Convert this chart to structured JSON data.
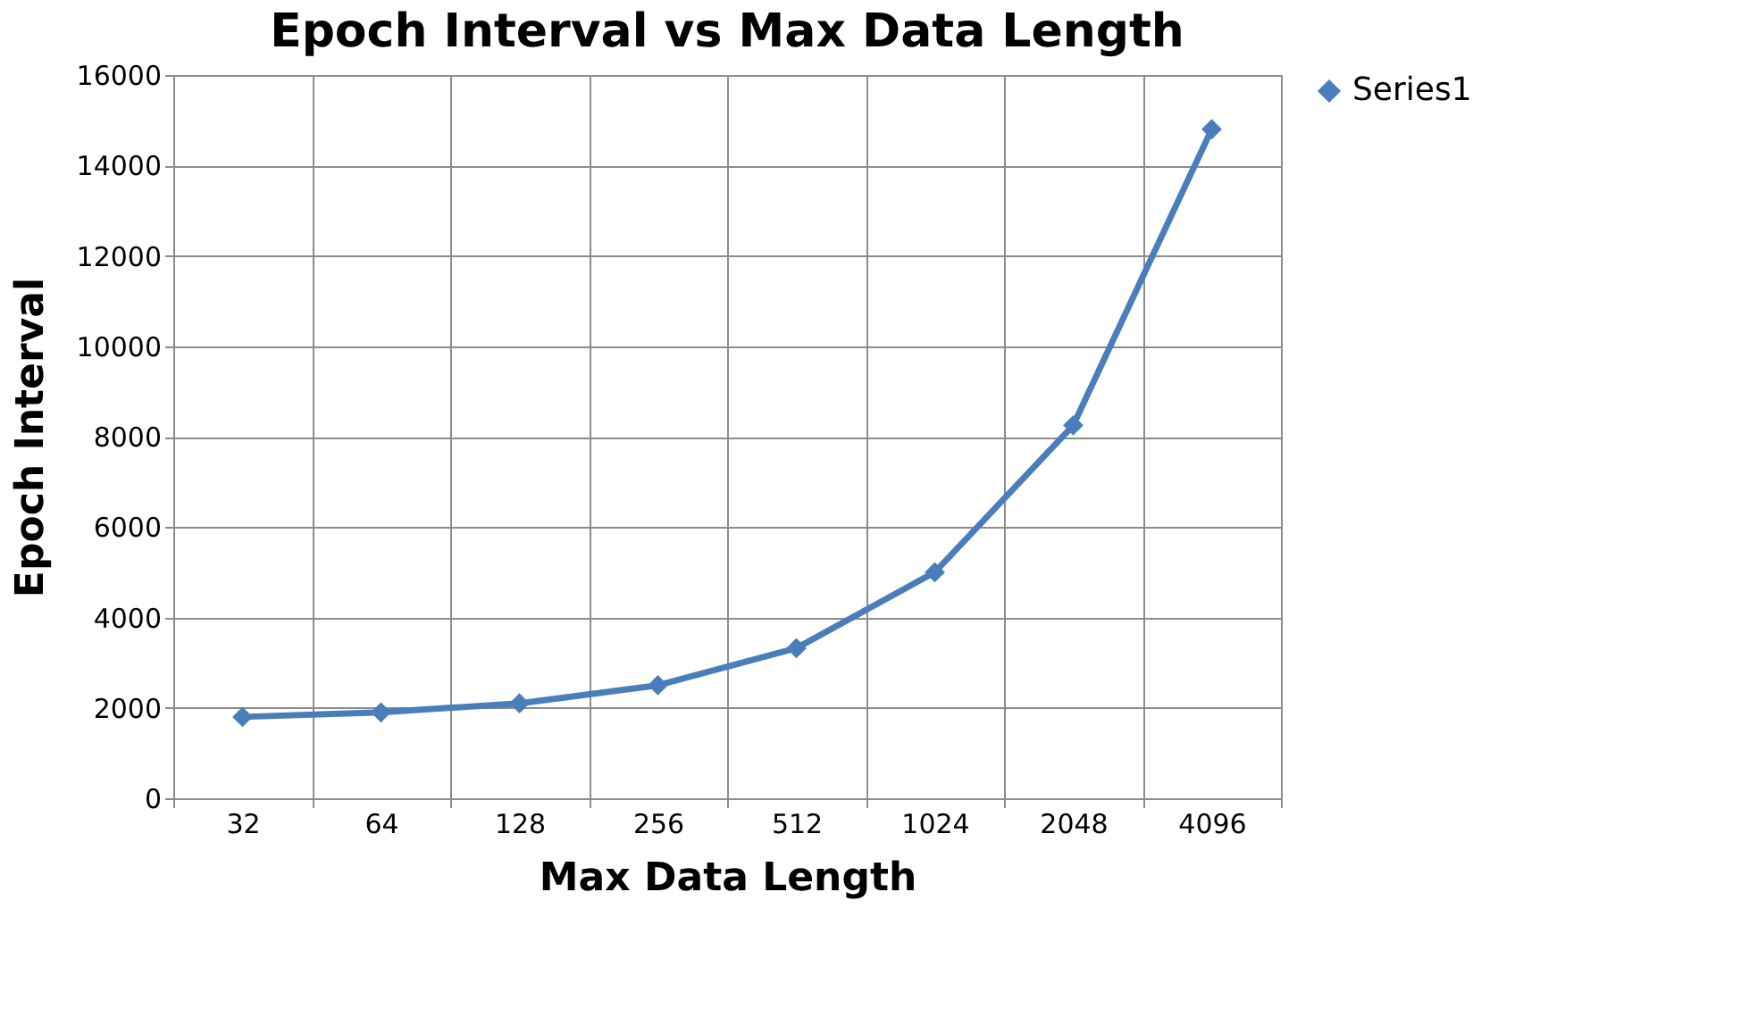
{
  "chart_data": {
    "type": "line",
    "title": "Epoch Interval vs Max Data Length",
    "xlabel": "Max Data Length",
    "ylabel": "Epoch Interval",
    "categories": [
      "32",
      "64",
      "128",
      "256",
      "512",
      "1024",
      "2048",
      "4096"
    ],
    "series": [
      {
        "name": "Series1",
        "color": "#4a7ebb",
        "values": [
          1800,
          1900,
          2100,
          2500,
          3320,
          5000,
          8250,
          14800
        ]
      }
    ],
    "ylim": [
      0,
      16000
    ],
    "yticks": [
      0,
      2000,
      4000,
      6000,
      8000,
      10000,
      12000,
      14000,
      16000
    ],
    "grid": true,
    "legend": "right",
    "marker": "diamond",
    "line_style": "solid"
  }
}
